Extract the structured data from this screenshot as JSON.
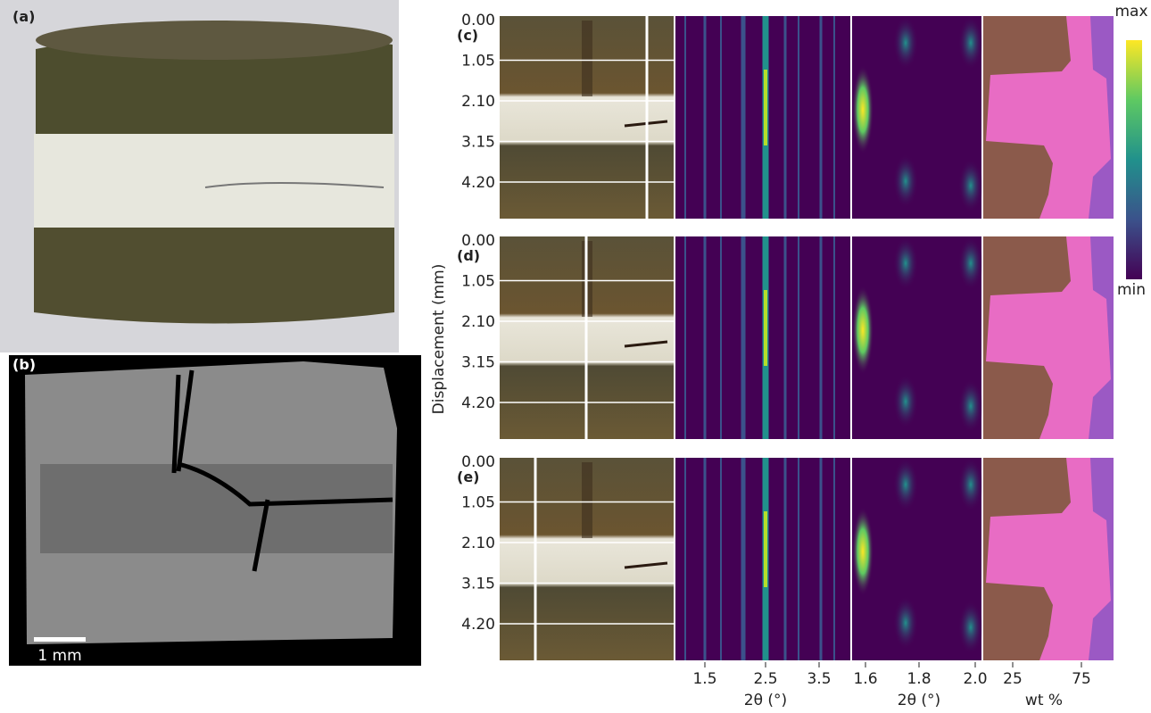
{
  "panels": {
    "a": {
      "label": "(a)"
    },
    "b": {
      "label": "(b)",
      "scale_bar": "1 mm"
    },
    "rows": [
      {
        "label": "(c)"
      },
      {
        "label": "(d)"
      },
      {
        "label": "(e)"
      }
    ]
  },
  "y_axis": {
    "label": "Displacement (mm)",
    "ticks": [
      "0.00",
      "1.05",
      "2.10",
      "3.15",
      "4.20"
    ]
  },
  "x_axes": [
    {
      "ticks": [
        "1.5",
        "2.5",
        "3.5"
      ],
      "label": "2θ (°)"
    },
    {
      "ticks": [
        "1.6",
        "1.8",
        "2.0"
      ],
      "label": "2θ (°)"
    },
    {
      "ticks": [
        "25",
        "75"
      ],
      "label": "wt %"
    }
  ],
  "colorbar": {
    "max": "max",
    "min": "min"
  }
}
